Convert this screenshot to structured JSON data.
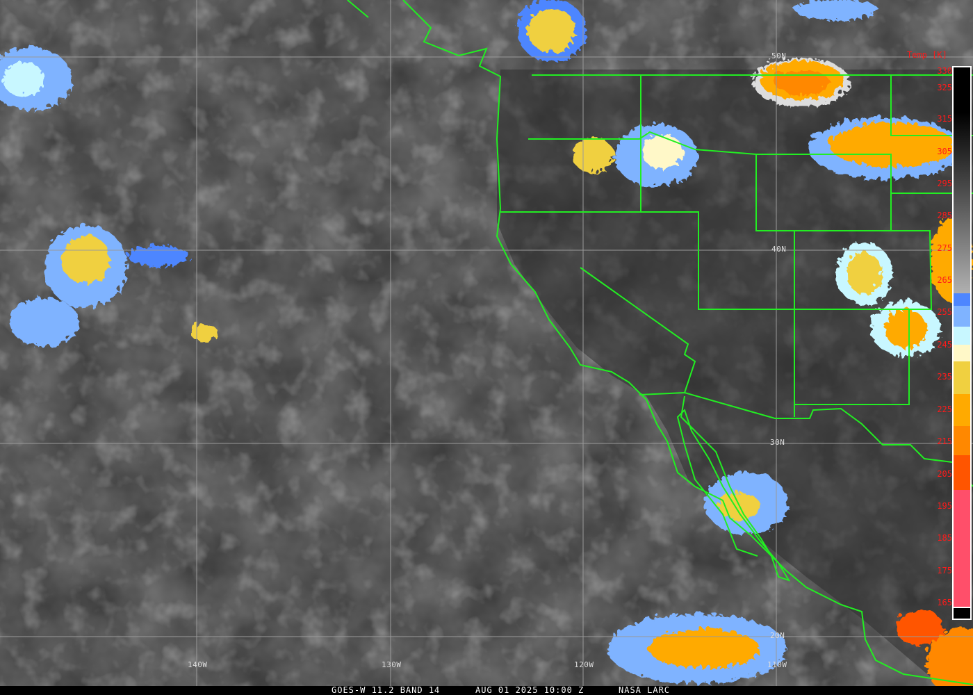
{
  "caption": {
    "satellite": "GOES-W 11.2 BAND 14",
    "datetime": "AUG 01 2025 10:00 Z",
    "credit": "NASA LARC"
  },
  "colorbar": {
    "title": "Temp [K]",
    "ticks": [
      "330",
      "325",
      "315",
      "305",
      "295",
      "285",
      "275",
      "265",
      "255",
      "245",
      "235",
      "225",
      "215",
      "205",
      "195",
      "185",
      "175",
      "165"
    ],
    "colors": {
      "cold_blue": "#4d86ff",
      "light_blue": "#7fb3ff",
      "pale_cyan": "#c8f7ff",
      "cream": "#fff8c8",
      "yellow": "#f0d040",
      "amber": "#ffaa00",
      "orange": "#ff8800",
      "red_orange": "#ff5500",
      "pink": "#ff4f6a"
    }
  },
  "grid": {
    "latitudes": [
      "50N",
      "40N",
      "30N",
      "20N"
    ],
    "longitudes": [
      "140W",
      "130W",
      "120W",
      "110W"
    ]
  },
  "map_colors": {
    "borders": "#22ee22",
    "grid": "#9a9a9a"
  }
}
